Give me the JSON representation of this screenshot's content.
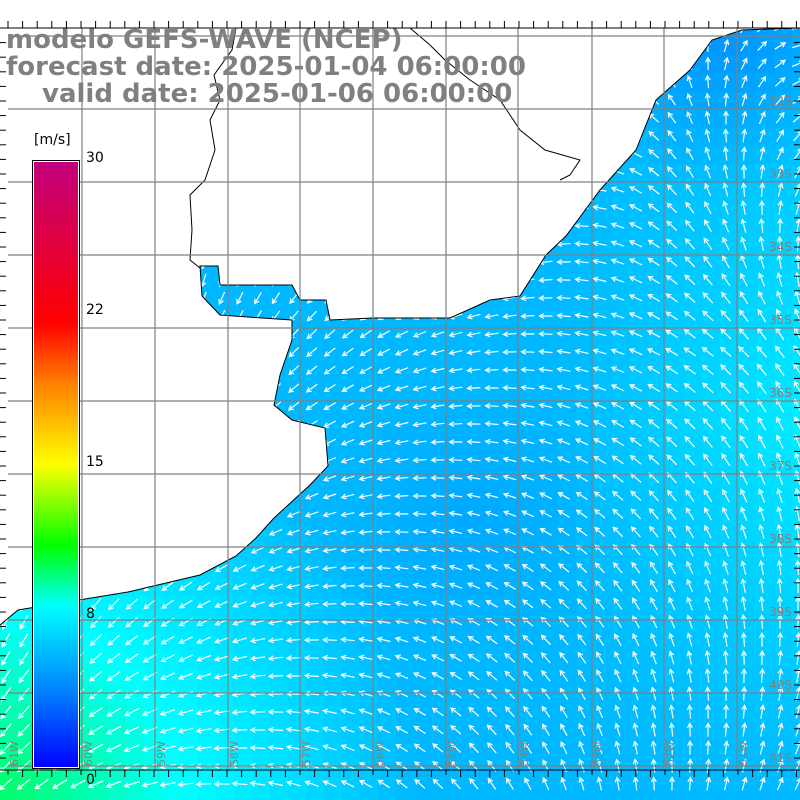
{
  "title": {
    "model": "modelo GEFS-WAVE (NCEP)",
    "forecast": "forecast date: 2025-01-04 06:00:00",
    "valid": "valid date: 2025-01-06 06:00:00"
  },
  "colorbar": {
    "units": "[m/s]",
    "ticks": [
      "30",
      "22",
      "15",
      "8",
      "0"
    ],
    "stops": [
      {
        "value": 0,
        "color": "#0000ff"
      },
      {
        "value": 4,
        "color": "#0088ff"
      },
      {
        "value": 8,
        "color": "#00ffff"
      },
      {
        "value": 11,
        "color": "#00ff00"
      },
      {
        "value": 15,
        "color": "#ffff00"
      },
      {
        "value": 19,
        "color": "#ff8000"
      },
      {
        "value": 22,
        "color": "#ff0000"
      },
      {
        "value": 30,
        "color": "#c0007f"
      }
    ]
  },
  "lat_labels": [
    "32S",
    "33S",
    "34S",
    "35S",
    "36S",
    "37S",
    "38S",
    "39S",
    "40S",
    "41S"
  ],
  "lon_labels": [
    "61W",
    "60W",
    "59W",
    "58W",
    "57W",
    "56W",
    "55W",
    "54W",
    "53W",
    "52W",
    "51W"
  ],
  "colors": {
    "grid": "#808080",
    "label": "#808080",
    "coast": "#000000",
    "land": "#ffffff",
    "arrow": "#ffffff"
  }
}
